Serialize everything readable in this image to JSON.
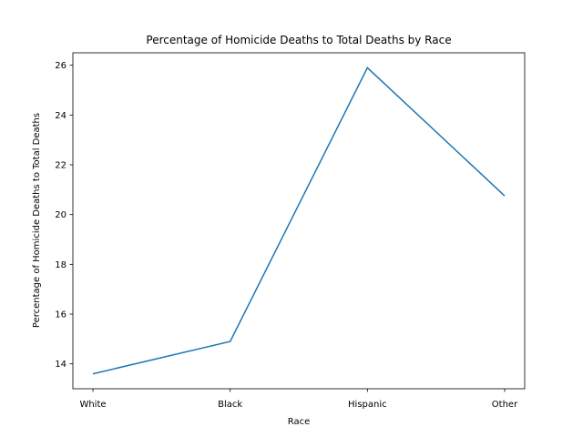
{
  "chart_data": {
    "type": "line",
    "title": "Percentage of Homicide Deaths to Total Deaths by Race",
    "xlabel": "Race",
    "ylabel": "Percentage of Homicide Deaths to Total Deaths",
    "categories": [
      "White",
      "Black",
      "Hispanic",
      "Other"
    ],
    "series": [
      {
        "values": [
          13.6,
          14.9,
          25.9,
          20.75
        ]
      }
    ],
    "ylim": [
      13.0,
      26.5
    ],
    "yticks": [
      14,
      16,
      18,
      20,
      22,
      24,
      26
    ],
    "grid": false,
    "colors": {
      "line": "#1f77b4",
      "axis": "#000000",
      "background": "#ffffff"
    }
  }
}
